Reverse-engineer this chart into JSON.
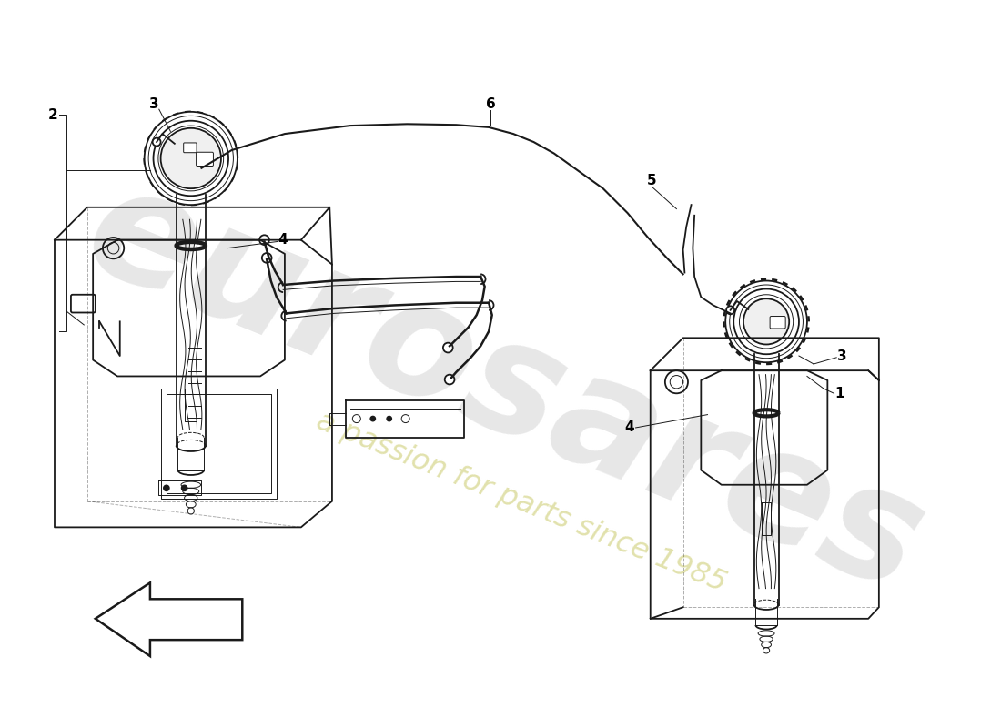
{
  "bg_color": "#ffffff",
  "lc": "#1a1a1a",
  "lw": 1.3,
  "tlw": 0.7,
  "fig_w": 11.0,
  "fig_h": 8.0,
  "dpi": 100,
  "wm1_color": "#d0d0d0",
  "wm2_color": "#e0e0a8"
}
